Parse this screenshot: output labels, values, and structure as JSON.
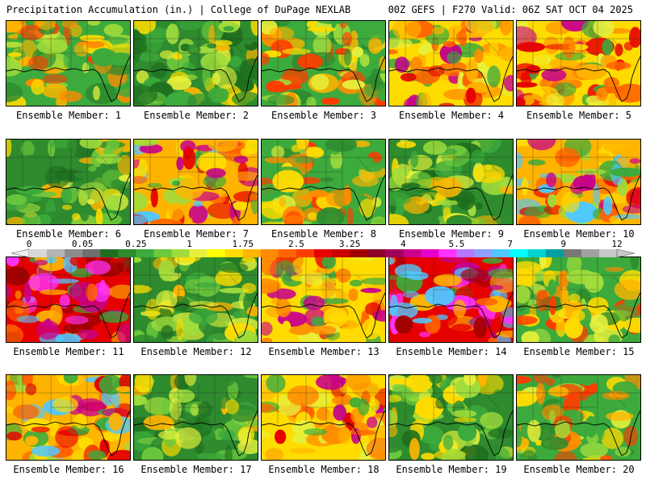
{
  "header": {
    "left": "Precipitation Accumulation (in.) | College of DuPage NEXLAB",
    "right": "00Z GEFS | F270 Valid: 06Z SAT OCT 04 2025"
  },
  "colorbar": {
    "tick_labels": [
      "0",
      "0.05",
      "0.25",
      "1",
      "1.75",
      "2.5",
      "3.25",
      "4",
      "5.5",
      "7",
      "9",
      "12"
    ],
    "colors": [
      "#d8d8d8",
      "#b4b4b4",
      "#8c8c8c",
      "#6e6e6e",
      "#1e6e1e",
      "#2e8b2e",
      "#3caa3c",
      "#6cc83c",
      "#a0dc3c",
      "#e6f03c",
      "#ffff00",
      "#ffdc00",
      "#ffb400",
      "#ff8c00",
      "#ff6400",
      "#ff3c00",
      "#e60000",
      "#c80000",
      "#a00000",
      "#8c0028",
      "#a0005a",
      "#c8008c",
      "#e600c8",
      "#ff32ff",
      "#b478ff",
      "#8ca0ff",
      "#50c8ff",
      "#00ffff",
      "#00d2d2",
      "#00a0a0",
      "#787878",
      "#a0a0a0",
      "#c8c8c8"
    ]
  },
  "members": [
    {
      "label": "Ensemble Member: 1",
      "style": "a"
    },
    {
      "label": "Ensemble Member: 2",
      "style": "b"
    },
    {
      "label": "Ensemble Member: 3",
      "style": "a"
    },
    {
      "label": "Ensemble Member: 4",
      "style": "c"
    },
    {
      "label": "Ensemble Member: 5",
      "style": "c"
    },
    {
      "label": "Ensemble Member: 6",
      "style": "b"
    },
    {
      "label": "Ensemble Member: 7",
      "style": "d"
    },
    {
      "label": "Ensemble Member: 8",
      "style": "a"
    },
    {
      "label": "Ensemble Member: 9",
      "style": "b"
    },
    {
      "label": "Ensemble Member: 10",
      "style": "d"
    },
    {
      "label": "Ensemble Member: 11",
      "style": "e"
    },
    {
      "label": "Ensemble Member: 12",
      "style": "b"
    },
    {
      "label": "Ensemble Member: 13",
      "style": "c"
    },
    {
      "label": "Ensemble Member: 14",
      "style": "e"
    },
    {
      "label": "Ensemble Member: 15",
      "style": "a"
    },
    {
      "label": "Ensemble Member: 16",
      "style": "d"
    },
    {
      "label": "Ensemble Member: 17",
      "style": "b"
    },
    {
      "label": "Ensemble Member: 18",
      "style": "c"
    },
    {
      "label": "Ensemble Member: 19",
      "style": "b"
    },
    {
      "label": "Ensemble Member: 20",
      "style": "a"
    }
  ]
}
